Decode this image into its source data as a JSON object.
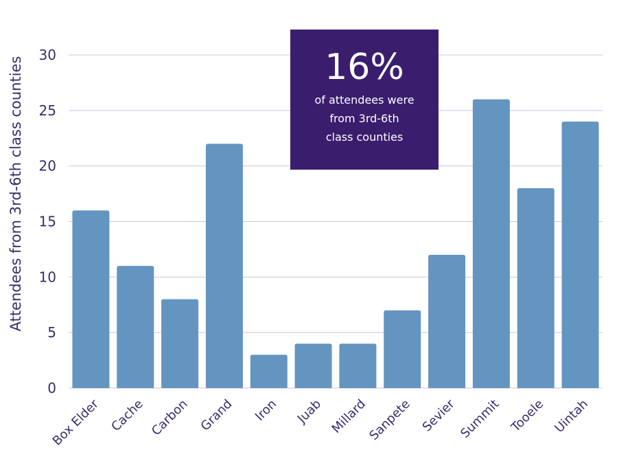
{
  "chart_data": {
    "type": "bar",
    "categories": [
      "Box Elder",
      "Cache",
      "Carbon",
      "Grand",
      "Iron",
      "Juab",
      "Millard",
      "Sanpete",
      "Sevier",
      "Summit",
      "Tooele",
      "Uintah"
    ],
    "values": [
      16,
      11,
      8,
      22,
      3,
      4,
      4,
      7,
      12,
      26,
      18,
      24
    ],
    "title": "",
    "xlabel": "",
    "ylabel": "Attendees from 3rd-6th class counties",
    "ylim": [
      0,
      30
    ],
    "yticks": [
      0,
      5,
      10,
      15,
      20,
      25,
      30
    ],
    "grid": true,
    "colors": {
      "bar": "#6395c0",
      "grid": "#c9c4dc",
      "text": "#3a2a6b",
      "callout_bg": "#3b1d6e"
    },
    "annotation": {
      "headline": "16%",
      "lines": [
        "of attendees were",
        "from 3rd-6th",
        "class counties"
      ]
    }
  }
}
